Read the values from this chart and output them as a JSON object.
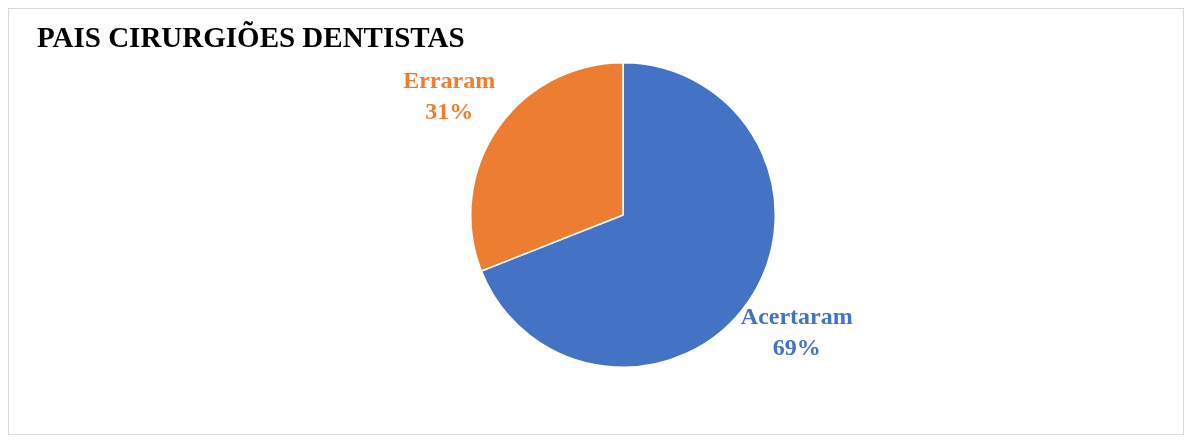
{
  "chart_data": {
    "type": "pie",
    "title": "PAIS CIRURGIÕES DENTISTAS",
    "categories": [
      "Acertaram",
      "Erraram"
    ],
    "values": [
      69,
      31
    ],
    "colors": [
      "#4472c4",
      "#ed7d31"
    ],
    "value_labels": [
      "69%",
      "31%"
    ],
    "legend": false
  }
}
